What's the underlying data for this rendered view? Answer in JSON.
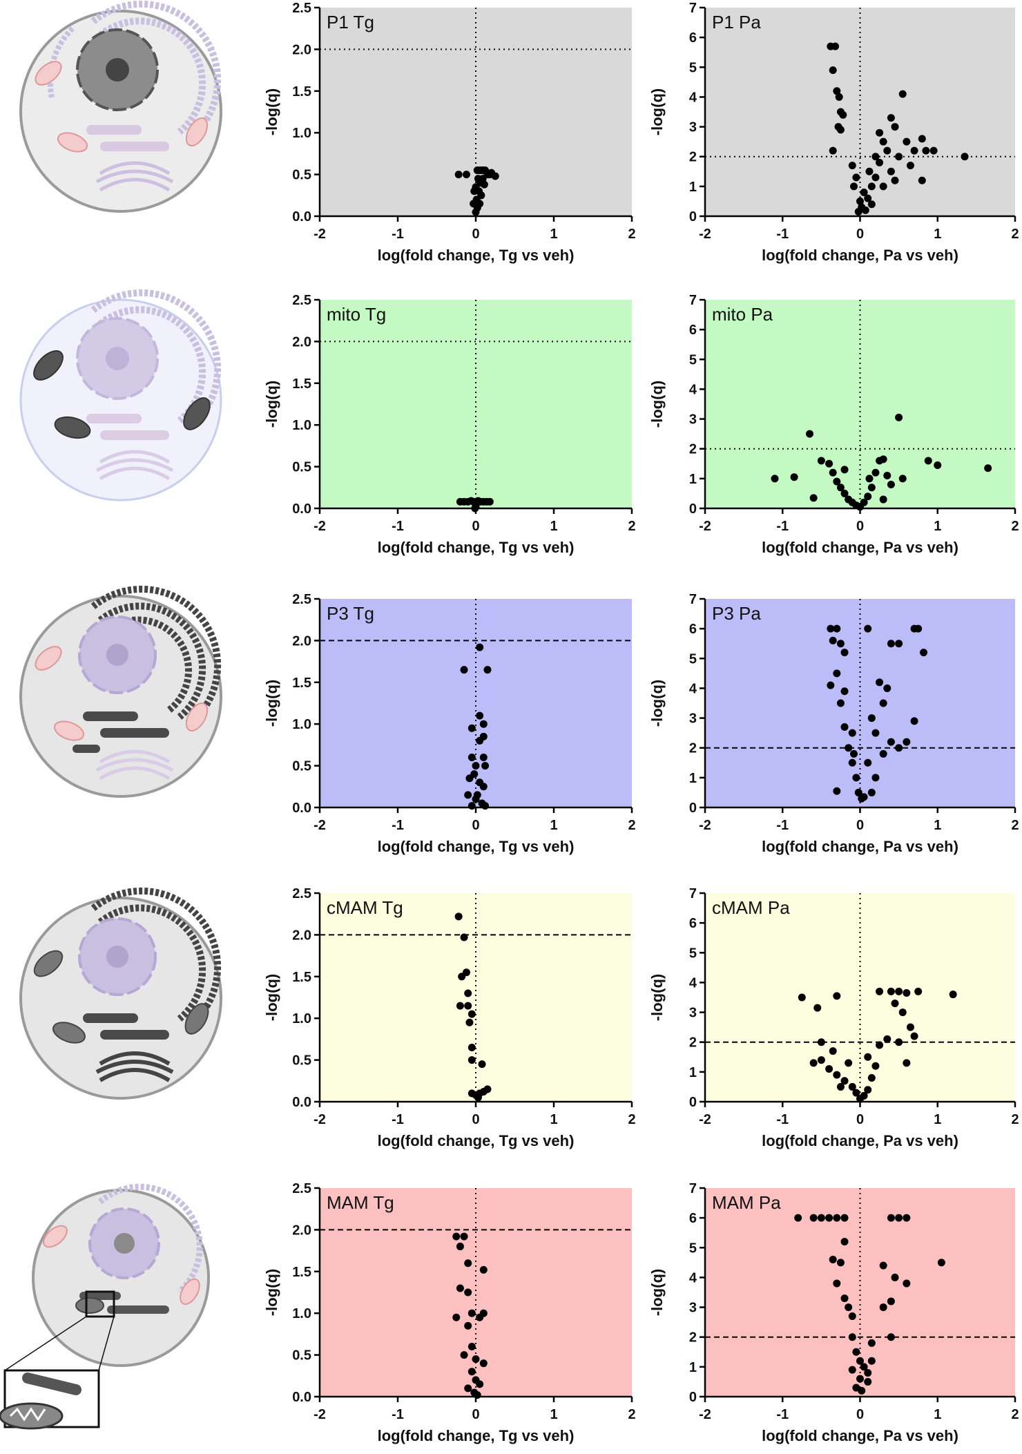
{
  "chart_data": [
    {
      "type": "scatter",
      "title": "P1 Tg",
      "xlabel": "log(fold change, Tg vs veh)",
      "ylabel": "-log(q)",
      "background": "#d9d9d9",
      "color": "#000000",
      "xlim": [
        -2,
        2
      ],
      "xticks": [
        -2,
        -1,
        0,
        1,
        2
      ],
      "ylim": [
        0,
        2.5
      ],
      "yticks": [
        {
          "value": 0,
          "label": "0.0"
        },
        {
          "value": 0.5,
          "label": "0.5"
        },
        {
          "value": 1,
          "label": "1.0"
        },
        {
          "value": 1.5,
          "label": "1.5"
        },
        {
          "value": 2,
          "label": "2.0"
        },
        {
          "value": 2.5,
          "label": "2.5"
        }
      ],
      "threshold": 2,
      "threshold_style": "dotted",
      "vline": 0,
      "x": [
        -0.22,
        -0.12,
        0.02,
        0.05,
        0.08,
        0.1,
        0.12,
        0.15,
        0.18,
        0.2,
        0.25,
        0.03,
        0.06,
        0.0,
        -0.02,
        0.04,
        0.07,
        0.01,
        -0.03,
        0.05,
        0.02,
        0.09,
        0.11,
        0.0
      ],
      "values": [
        0.5,
        0.5,
        0.55,
        0.55,
        0.55,
        0.55,
        0.55,
        0.5,
        0.5,
        0.52,
        0.48,
        0.45,
        0.4,
        0.35,
        0.3,
        0.3,
        0.25,
        0.2,
        0.15,
        0.15,
        0.1,
        0.45,
        0.38,
        0.05
      ]
    },
    {
      "type": "scatter",
      "title": "P1 Pa",
      "xlabel": "log(fold change, Pa vs veh)",
      "ylabel": "-log(q)",
      "background": "#d9d9d9",
      "color": "#000000",
      "xlim": [
        -2,
        2
      ],
      "xticks": [
        -2,
        -1,
        0,
        1,
        2
      ],
      "ylim": [
        0,
        7
      ],
      "yticks": [
        0,
        1,
        2,
        3,
        4,
        5,
        6,
        7
      ],
      "threshold": 2,
      "threshold_style": "dotted",
      "vline": 0,
      "x": [
        -0.38,
        -0.32,
        -0.35,
        -0.3,
        -0.27,
        -0.25,
        -0.22,
        -0.28,
        -0.25,
        -0.35,
        -0.1,
        -0.05,
        -0.08,
        0.0,
        0.02,
        0.05,
        0.1,
        0.15,
        0.12,
        0.2,
        0.25,
        0.3,
        0.35,
        0.4,
        0.45,
        0.5,
        0.55,
        0.6,
        0.7,
        0.65,
        0.4,
        0.8,
        0.85,
        0.8,
        0.95,
        1.35,
        0.3,
        0.25,
        0.15,
        -0.02,
        0.07,
        0.45,
        0.2
      ],
      "values": [
        5.7,
        5.7,
        4.9,
        4.2,
        4.0,
        3.5,
        3.4,
        3.0,
        2.9,
        2.2,
        1.7,
        1.3,
        1.0,
        0.5,
        0.3,
        0.8,
        0.6,
        1.0,
        1.5,
        2.0,
        1.8,
        2.5,
        2.2,
        1.5,
        3.0,
        2.0,
        4.1,
        2.5,
        2.2,
        1.7,
        3.3,
        2.6,
        2.2,
        1.2,
        2.2,
        2.0,
        1.0,
        2.8,
        0.4,
        0.15,
        0.2,
        1.2,
        1.3
      ]
    },
    {
      "type": "scatter",
      "title": "mito Tg",
      "xlabel": "log(fold change, Tg vs veh)",
      "ylabel": "-log(q)",
      "background": "#c4f9c4",
      "color": "#000000",
      "xlim": [
        -2,
        2
      ],
      "xticks": [
        -2,
        -1,
        0,
        1,
        2
      ],
      "ylim": [
        0,
        2.5
      ],
      "yticks": [
        {
          "value": 0,
          "label": "0.0"
        },
        {
          "value": 0.5,
          "label": "0.5"
        },
        {
          "value": 1,
          "label": "1.0"
        },
        {
          "value": 1.5,
          "label": "1.5"
        },
        {
          "value": 2,
          "label": "2.0"
        },
        {
          "value": 2.5,
          "label": "2.5"
        }
      ],
      "threshold": 2,
      "threshold_style": "dotted",
      "vline": 0,
      "x": [
        -0.2,
        -0.15,
        -0.1,
        -0.06,
        -0.03,
        0.0,
        0.03,
        0.06,
        0.1,
        0.14,
        0.18,
        0.0,
        -0.01
      ],
      "values": [
        0.08,
        0.08,
        0.08,
        0.09,
        0.08,
        0.08,
        0.09,
        0.08,
        0.08,
        0.08,
        0.08,
        0.02,
        0.0
      ]
    },
    {
      "type": "scatter",
      "title": "mito Pa",
      "xlabel": "log(fold change, Pa vs veh)",
      "ylabel": "-log(q)",
      "background": "#c4f9c4",
      "color": "#000000",
      "xlim": [
        -2,
        2
      ],
      "xticks": [
        -2,
        -1,
        0,
        1,
        2
      ],
      "ylim": [
        0,
        7
      ],
      "yticks": [
        0,
        1,
        2,
        3,
        4,
        5,
        6,
        7
      ],
      "threshold": 2,
      "threshold_style": "dotted",
      "vline": 0,
      "x": [
        -1.1,
        -0.85,
        -0.65,
        -0.6,
        -0.5,
        -0.4,
        -0.35,
        -0.3,
        -0.25,
        -0.2,
        -0.15,
        -0.1,
        -0.05,
        0.0,
        0.05,
        0.1,
        0.15,
        0.2,
        0.25,
        0.3,
        0.35,
        0.4,
        0.5,
        0.55,
        0.88,
        1.0,
        1.65,
        -0.2,
        0.12,
        0.3
      ],
      "values": [
        1.0,
        1.05,
        2.5,
        0.35,
        1.6,
        1.5,
        1.2,
        0.9,
        0.7,
        0.5,
        0.3,
        0.2,
        0.1,
        0.05,
        0.2,
        0.4,
        0.7,
        1.2,
        1.6,
        1.65,
        1.1,
        0.8,
        3.05,
        1.0,
        1.6,
        1.45,
        1.35,
        1.3,
        1.0,
        0.3
      ]
    },
    {
      "type": "scatter",
      "title": "P3 Tg",
      "xlabel": "log(fold change, Tg vs veh)",
      "ylabel": "-log(q)",
      "background": "#bcbcf8",
      "color": "#000000",
      "xlim": [
        -2,
        2
      ],
      "xticks": [
        -2,
        -1,
        0,
        1,
        2
      ],
      "ylim": [
        0,
        2.5
      ],
      "yticks": [
        {
          "value": 0,
          "label": "0.0"
        },
        {
          "value": 0.5,
          "label": "0.5"
        },
        {
          "value": 1,
          "label": "1.0"
        },
        {
          "value": 1.5,
          "label": "1.5"
        },
        {
          "value": 2,
          "label": "2.0"
        },
        {
          "value": 2.5,
          "label": "2.5"
        }
      ],
      "threshold": 2,
      "threshold_style": "dashed",
      "vline": 0,
      "x": [
        0.05,
        -0.15,
        0.15,
        0.05,
        0.1,
        -0.05,
        0.1,
        0.05,
        -0.05,
        0.1,
        0.0,
        0.12,
        -0.08,
        0.05,
        0.1,
        -0.1,
        0.0,
        0.08,
        -0.05,
        0.12,
        0.02,
        -0.02
      ],
      "values": [
        1.92,
        1.65,
        1.65,
        1.1,
        1.0,
        0.95,
        0.85,
        0.8,
        0.6,
        0.6,
        0.5,
        0.5,
        0.35,
        0.3,
        0.25,
        0.15,
        0.1,
        0.05,
        0.02,
        0.02,
        0.15,
        0.4
      ]
    },
    {
      "type": "scatter",
      "title": "P3 Pa",
      "xlabel": "log(fold change, Pa vs veh)",
      "ylabel": "-log(q)",
      "background": "#bcbcf8",
      "color": "#000000",
      "xlim": [
        -2,
        2
      ],
      "xticks": [
        -2,
        -1,
        0,
        1,
        2
      ],
      "ylim": [
        0,
        7
      ],
      "yticks": [
        0,
        1,
        2,
        3,
        4,
        5,
        6,
        7
      ],
      "threshold": 2,
      "threshold_style": "dashed",
      "vline": 0,
      "x": [
        -0.38,
        -0.3,
        -0.35,
        -0.25,
        -0.2,
        -0.38,
        -0.3,
        -0.2,
        -0.25,
        -0.2,
        -0.1,
        -0.15,
        -0.1,
        -0.05,
        -0.02,
        0.02,
        0.1,
        0.7,
        0.75,
        0.4,
        0.5,
        0.82,
        0.25,
        0.35,
        0.3,
        0.15,
        0.2,
        0.4,
        0.5,
        0.6,
        0.7,
        0.1,
        0.2,
        0.15,
        -0.3,
        0.05,
        0.3,
        -0.08
      ],
      "values": [
        6.0,
        6.0,
        5.6,
        5.5,
        5.2,
        4.1,
        4.5,
        3.9,
        3.5,
        2.7,
        2.5,
        2.0,
        1.5,
        1.0,
        0.5,
        0.3,
        6.0,
        6.0,
        6.0,
        5.5,
        5.5,
        5.2,
        4.2,
        4.0,
        3.5,
        3.0,
        2.5,
        2.2,
        2.0,
        2.2,
        2.9,
        1.5,
        1.0,
        0.5,
        0.55,
        0.35,
        1.8,
        1.8
      ]
    },
    {
      "type": "scatter",
      "title": "cMAM Tg",
      "xlabel": "log(fold change, Tg vs veh)",
      "ylabel": "-log(q)",
      "background": "#fdfde0",
      "color": "#000000",
      "xlim": [
        -2,
        2
      ],
      "xticks": [
        -2,
        -1,
        0,
        1,
        2
      ],
      "ylim": [
        0,
        2.5
      ],
      "yticks": [
        {
          "value": 0,
          "label": "0.0"
        },
        {
          "value": 0.5,
          "label": "0.5"
        },
        {
          "value": 1,
          "label": "1.0"
        },
        {
          "value": 1.5,
          "label": "1.5"
        },
        {
          "value": 2,
          "label": "2.0"
        },
        {
          "value": 2.5,
          "label": "2.5"
        }
      ],
      "threshold": 2,
      "threshold_style": "dashed",
      "vline": 0,
      "x": [
        -0.22,
        -0.15,
        -0.12,
        -0.18,
        -0.1,
        -0.2,
        -0.1,
        -0.05,
        -0.08,
        -0.05,
        -0.05,
        0.08,
        -0.05,
        0.0,
        0.05,
        0.1,
        0.15,
        0.03
      ],
      "values": [
        2.22,
        1.97,
        1.55,
        1.5,
        1.3,
        1.15,
        1.15,
        1.05,
        0.95,
        0.65,
        0.5,
        0.45,
        0.1,
        0.08,
        0.1,
        0.12,
        0.15,
        0.05
      ]
    },
    {
      "type": "scatter",
      "title": "cMAM Pa",
      "xlabel": "log(fold change, Pa vs veh)",
      "ylabel": "-log(q)",
      "background": "#fdfde0",
      "color": "#000000",
      "xlim": [
        -2,
        2
      ],
      "xticks": [
        -2,
        -1,
        0,
        1,
        2
      ],
      "ylim": [
        0,
        7
      ],
      "yticks": [
        0,
        1,
        2,
        3,
        4,
        5,
        6,
        7
      ],
      "threshold": 2,
      "threshold_style": "dashed",
      "vline": 0,
      "x": [
        -0.75,
        -0.55,
        -0.3,
        0.25,
        0.4,
        0.5,
        0.6,
        0.75,
        1.2,
        0.45,
        0.55,
        0.65,
        0.7,
        0.5,
        0.35,
        0.25,
        0.1,
        -0.5,
        -0.35,
        -0.5,
        -0.6,
        -0.4,
        -0.3,
        -0.2,
        -0.1,
        -0.05,
        0.0,
        0.05,
        0.1,
        0.15,
        0.2,
        -0.15,
        0.6,
        -0.25
      ],
      "values": [
        3.5,
        3.15,
        3.55,
        3.7,
        3.7,
        3.7,
        3.65,
        3.7,
        3.6,
        3.3,
        3.0,
        2.5,
        2.2,
        2.0,
        2.1,
        1.9,
        1.5,
        2.0,
        1.7,
        1.4,
        1.3,
        1.1,
        0.9,
        0.7,
        0.5,
        0.3,
        0.1,
        0.2,
        0.4,
        0.8,
        1.2,
        1.3,
        1.3,
        0.5
      ]
    },
    {
      "type": "scatter",
      "title": "MAM Tg",
      "xlabel": "log(fold change, Tg vs veh)",
      "ylabel": "-log(q)",
      "background": "#fcc0c0",
      "color": "#000000",
      "xlim": [
        -2,
        2
      ],
      "xticks": [
        -2,
        -1,
        0,
        1,
        2
      ],
      "ylim": [
        0,
        2.5
      ],
      "yticks": [
        {
          "value": 0,
          "label": "0.0"
        },
        {
          "value": 0.5,
          "label": "0.5"
        },
        {
          "value": 1,
          "label": "1.0"
        },
        {
          "value": 1.5,
          "label": "1.5"
        },
        {
          "value": 2,
          "label": "2.0"
        },
        {
          "value": 2.5,
          "label": "2.5"
        }
      ],
      "threshold": 2,
      "threshold_style": "dashed",
      "vline": 0,
      "x": [
        -0.25,
        -0.15,
        -0.2,
        -0.1,
        0.1,
        -0.2,
        -0.1,
        -0.05,
        -0.25,
        0.05,
        0.1,
        -0.1,
        -0.05,
        -0.15,
        0.0,
        0.1,
        -0.05,
        0.0,
        0.05,
        -0.02,
        0.02,
        -0.1
      ],
      "values": [
        1.92,
        1.92,
        1.8,
        1.6,
        1.52,
        1.3,
        1.25,
        1.0,
        0.95,
        0.95,
        1.0,
        0.85,
        0.6,
        0.5,
        0.45,
        0.4,
        0.3,
        0.2,
        0.15,
        0.05,
        0.02,
        0.1
      ]
    },
    {
      "type": "scatter",
      "title": "MAM Pa",
      "xlabel": "log(fold change, Pa vs veh)",
      "ylabel": "-log(q)",
      "background": "#fcc0c0",
      "color": "#000000",
      "xlim": [
        -2,
        2
      ],
      "xticks": [
        -2,
        -1,
        0,
        1,
        2
      ],
      "ylim": [
        0,
        7
      ],
      "yticks": [
        0,
        1,
        2,
        3,
        4,
        5,
        6,
        7
      ],
      "threshold": 2,
      "threshold_style": "dashed",
      "vline": 0,
      "x": [
        -0.8,
        -0.6,
        -0.5,
        -0.4,
        -0.3,
        -0.2,
        0.4,
        0.5,
        0.6,
        -0.2,
        -0.25,
        -0.35,
        -0.3,
        -0.2,
        -0.15,
        -0.1,
        0.3,
        0.45,
        0.6,
        0.4,
        0.4,
        1.05,
        0.3,
        -0.1,
        -0.05,
        0.0,
        0.05,
        0.1,
        0.15,
        0.1,
        -0.05,
        0.0,
        0.02,
        0.15,
        -0.1
      ],
      "values": [
        6.0,
        6.0,
        6.0,
        6.0,
        6.0,
        6.0,
        6.0,
        6.0,
        6.0,
        5.2,
        4.5,
        4.6,
        3.8,
        3.3,
        3.0,
        2.7,
        4.4,
        4.0,
        3.8,
        3.2,
        2.0,
        4.5,
        3.0,
        2.0,
        1.5,
        1.2,
        1.0,
        0.8,
        1.8,
        0.5,
        0.3,
        0.6,
        0.2,
        1.2,
        0.9
      ]
    }
  ]
}
